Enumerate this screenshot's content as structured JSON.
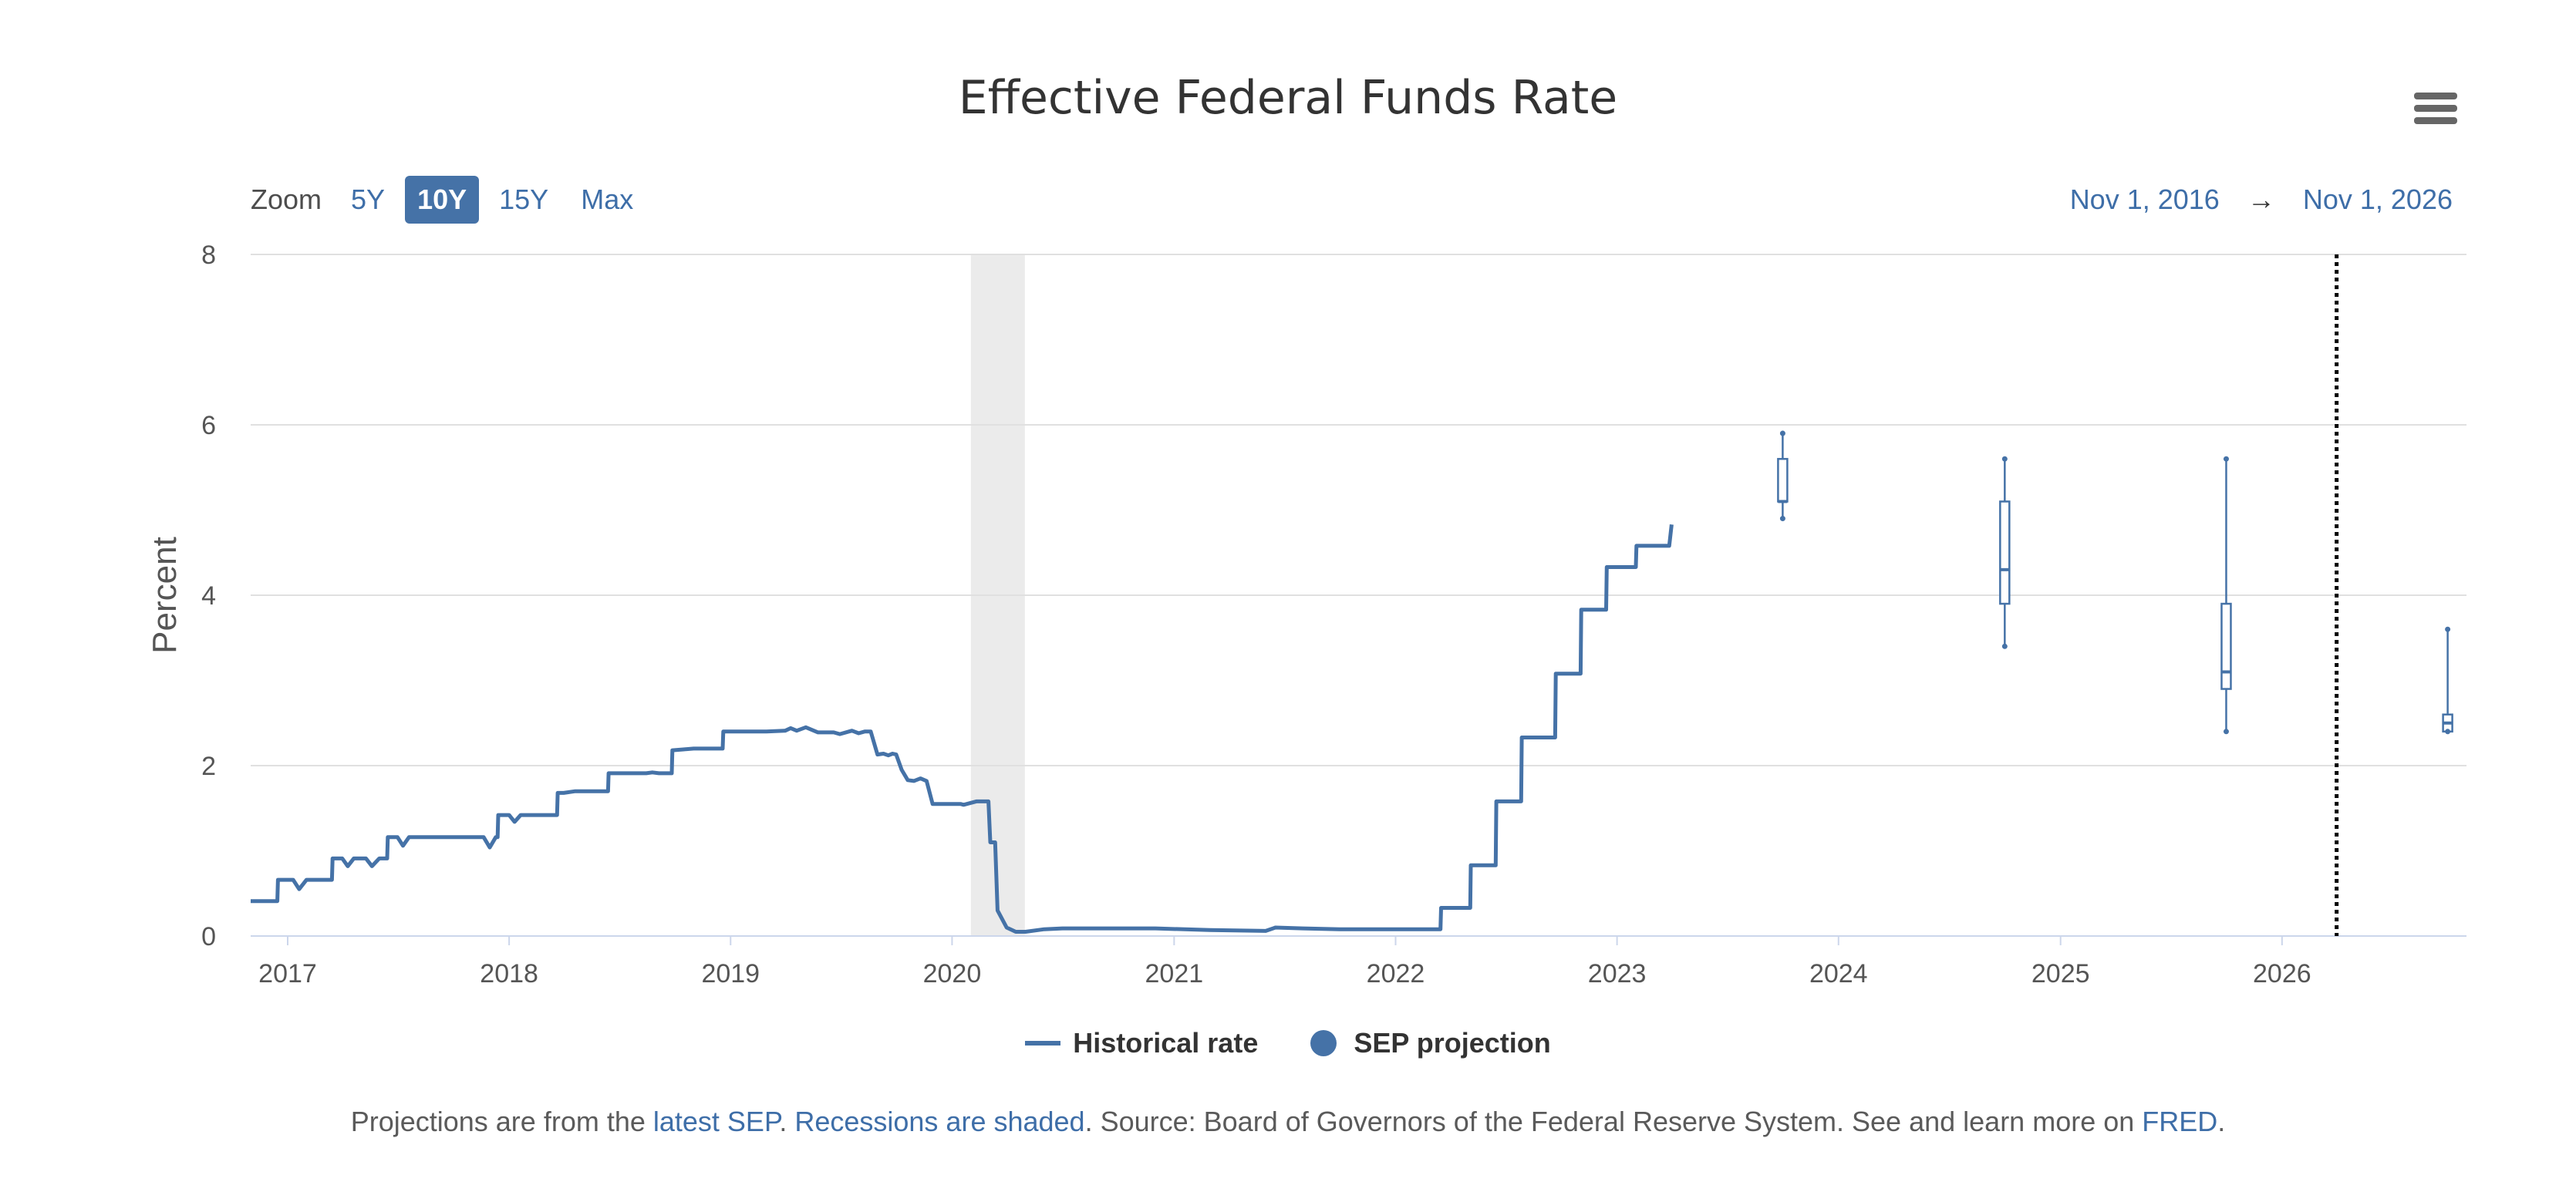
{
  "header": {
    "title": "Effective Federal Funds Rate"
  },
  "zoom": {
    "label": "Zoom",
    "options": [
      "5Y",
      "10Y",
      "15Y",
      "Max"
    ],
    "active": "10Y"
  },
  "range": {
    "start": "Nov 1, 2016",
    "arrow": "→",
    "end": "Nov 1, 2026"
  },
  "legend": {
    "historical": "Historical rate",
    "projection": "SEP projection"
  },
  "caption": {
    "prefix": "Projections are from the ",
    "link_sep": "latest SEP",
    "dot": ". ",
    "link_recessions": "Recessions are shaded",
    "source": ". Source: Board of Governors of the Federal Reserve System. See and learn more on ",
    "link_fred": "FRED",
    "end": "."
  },
  "colors": {
    "series": "#4572a7",
    "recession": "#ebebeb",
    "grid": "#e0e0e0",
    "axis": "#ccd6eb"
  },
  "chart_data": {
    "type": "line",
    "title": "Effective Federal Funds Rate",
    "xlabel": "",
    "ylabel": "Percent",
    "xlim": [
      "2016-11-01",
      "2026-11-01"
    ],
    "ylim": [
      0,
      8
    ],
    "y_ticks": [
      0,
      2,
      4,
      6,
      8
    ],
    "x_ticks": [
      "2017",
      "2018",
      "2019",
      "2020",
      "2021",
      "2022",
      "2023",
      "2024",
      "2025",
      "2026"
    ],
    "grid": true,
    "legend_position": "bottom",
    "recession_shading": [
      {
        "start": "2020-02-01",
        "end": "2020-04-30"
      }
    ],
    "vertical_marker": "2026-04-01",
    "series": [
      {
        "name": "Historical rate",
        "kind": "step-line",
        "points": [
          [
            "2016-11-01",
            0.41
          ],
          [
            "2016-12-15",
            0.41
          ],
          [
            "2016-12-16",
            0.66
          ],
          [
            "2017-01-10",
            0.66
          ],
          [
            "2017-01-20",
            0.55
          ],
          [
            "2017-02-01",
            0.66
          ],
          [
            "2017-03-15",
            0.66
          ],
          [
            "2017-03-16",
            0.91
          ],
          [
            "2017-04-01",
            0.91
          ],
          [
            "2017-04-10",
            0.82
          ],
          [
            "2017-04-20",
            0.91
          ],
          [
            "2017-05-10",
            0.91
          ],
          [
            "2017-05-20",
            0.82
          ],
          [
            "2017-06-01",
            0.91
          ],
          [
            "2017-06-14",
            0.91
          ],
          [
            "2017-06-15",
            1.16
          ],
          [
            "2017-07-01",
            1.16
          ],
          [
            "2017-07-10",
            1.06
          ],
          [
            "2017-07-20",
            1.16
          ],
          [
            "2017-11-20",
            1.16
          ],
          [
            "2017-11-30",
            1.04
          ],
          [
            "2017-12-10",
            1.16
          ],
          [
            "2017-12-13",
            1.16
          ],
          [
            "2017-12-14",
            1.42
          ],
          [
            "2018-01-01",
            1.42
          ],
          [
            "2018-01-10",
            1.34
          ],
          [
            "2018-01-20",
            1.42
          ],
          [
            "2018-03-21",
            1.42
          ],
          [
            "2018-03-22",
            1.68
          ],
          [
            "2018-04-01",
            1.68
          ],
          [
            "2018-04-20",
            1.7
          ],
          [
            "2018-06-13",
            1.7
          ],
          [
            "2018-06-14",
            1.91
          ],
          [
            "2018-07-01",
            1.91
          ],
          [
            "2018-08-15",
            1.91
          ],
          [
            "2018-08-25",
            1.92
          ],
          [
            "2018-09-05",
            1.91
          ],
          [
            "2018-09-26",
            1.91
          ],
          [
            "2018-09-27",
            2.18
          ],
          [
            "2018-10-15",
            2.19
          ],
          [
            "2018-11-01",
            2.2
          ],
          [
            "2018-12-19",
            2.2
          ],
          [
            "2018-12-20",
            2.4
          ],
          [
            "2019-03-01",
            2.4
          ],
          [
            "2019-04-01",
            2.41
          ],
          [
            "2019-04-10",
            2.44
          ],
          [
            "2019-04-20",
            2.41
          ],
          [
            "2019-05-05",
            2.45
          ],
          [
            "2019-05-25",
            2.39
          ],
          [
            "2019-06-20",
            2.39
          ],
          [
            "2019-06-30",
            2.37
          ],
          [
            "2019-07-20",
            2.41
          ],
          [
            "2019-07-31",
            2.38
          ],
          [
            "2019-08-10",
            2.4
          ],
          [
            "2019-08-20",
            2.4
          ],
          [
            "2019-08-31",
            2.13
          ],
          [
            "2019-09-10",
            2.14
          ],
          [
            "2019-09-18",
            2.12
          ],
          [
            "2019-09-25",
            2.14
          ],
          [
            "2019-10-01",
            2.13
          ],
          [
            "2019-10-10",
            1.95
          ],
          [
            "2019-10-20",
            1.83
          ],
          [
            "2019-10-30",
            1.82
          ],
          [
            "2019-11-10",
            1.85
          ],
          [
            "2019-11-20",
            1.82
          ],
          [
            "2019-11-30",
            1.55
          ],
          [
            "2019-12-10",
            1.55
          ],
          [
            "2020-01-15",
            1.55
          ],
          [
            "2020-01-20",
            1.54
          ],
          [
            "2020-02-10",
            1.58
          ],
          [
            "2020-03-01",
            1.58
          ],
          [
            "2020-03-04",
            1.1
          ],
          [
            "2020-03-12",
            1.1
          ],
          [
            "2020-03-16",
            0.3
          ],
          [
            "2020-03-31",
            0.1
          ],
          [
            "2020-04-15",
            0.05
          ],
          [
            "2020-05-01",
            0.05
          ],
          [
            "2020-06-01",
            0.08
          ],
          [
            "2020-07-01",
            0.09
          ],
          [
            "2020-10-01",
            0.09
          ],
          [
            "2020-12-01",
            0.09
          ],
          [
            "2021-03-01",
            0.07
          ],
          [
            "2021-06-01",
            0.06
          ],
          [
            "2021-06-17",
            0.1
          ],
          [
            "2021-08-01",
            0.09
          ],
          [
            "2021-10-01",
            0.08
          ],
          [
            "2022-03-16",
            0.08
          ],
          [
            "2022-03-17",
            0.33
          ],
          [
            "2022-05-04",
            0.33
          ],
          [
            "2022-05-05",
            0.83
          ],
          [
            "2022-06-15",
            0.83
          ],
          [
            "2022-06-16",
            1.58
          ],
          [
            "2022-07-27",
            1.58
          ],
          [
            "2022-07-28",
            2.33
          ],
          [
            "2022-09-21",
            2.33
          ],
          [
            "2022-09-22",
            3.08
          ],
          [
            "2022-11-02",
            3.08
          ],
          [
            "2022-11-03",
            3.83
          ],
          [
            "2022-12-14",
            3.83
          ],
          [
            "2022-12-15",
            4.33
          ],
          [
            "2023-02-01",
            4.33
          ],
          [
            "2023-02-02",
            4.58
          ],
          [
            "2023-03-22",
            4.58
          ],
          [
            "2023-03-23",
            4.58
          ],
          [
            "2023-03-28",
            4.58
          ],
          [
            "2023-04-01",
            4.83
          ]
        ]
      },
      {
        "name": "SEP projection",
        "kind": "boxplot",
        "boxes": [
          {
            "x": "2023-10-01",
            "low": 4.9,
            "q1": 5.1,
            "median": 5.1,
            "q3": 5.6,
            "high": 5.9
          },
          {
            "x": "2024-10-01",
            "low": 3.4,
            "q1": 3.9,
            "median": 4.3,
            "q3": 5.1,
            "high": 5.6
          },
          {
            "x": "2025-10-01",
            "low": 2.4,
            "q1": 2.9,
            "median": 3.1,
            "q3": 3.9,
            "high": 5.6
          },
          {
            "x": "2026-10-01",
            "low": 2.4,
            "q1": 2.4,
            "median": 2.5,
            "q3": 2.6,
            "high": 3.6
          }
        ]
      }
    ]
  }
}
